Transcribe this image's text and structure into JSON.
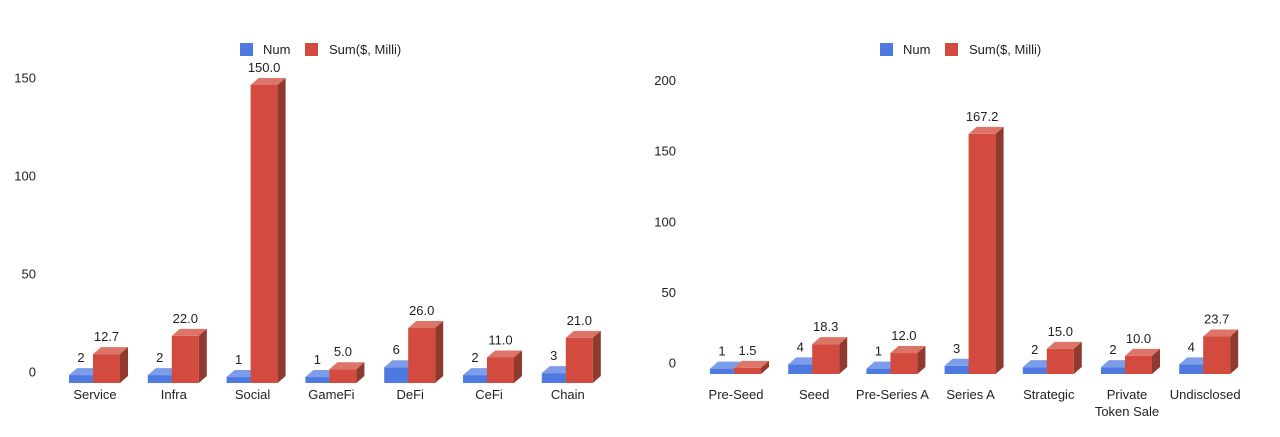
{
  "page": {
    "background_color": "#ffffff",
    "text_color": "#1f1f1f"
  },
  "colors": {
    "num_front": "#4E79E0",
    "num_top": "#7D9CEA",
    "num_side": "#3A58AC",
    "sum_front": "#D24B3E",
    "sum_top": "#DD7468",
    "sum_side": "#903A2F"
  },
  "chart_data": [
    {
      "type": "bar",
      "style": "3d-column",
      "title": "",
      "legend_position": "top",
      "grid": false,
      "categories": [
        "Service",
        "Infra",
        "Social",
        "GameFi",
        "DeFi",
        "CeFi",
        "Chain"
      ],
      "series": [
        {
          "name": "Num",
          "color": "#4E79E0",
          "values": [
            2,
            2,
            1,
            1,
            6,
            2,
            3
          ],
          "labels": [
            "2",
            "2",
            "1",
            "1",
            "6",
            "2",
            "3"
          ]
        },
        {
          "name": "Sum($, Milli)",
          "color": "#D24B3E",
          "values": [
            12.7,
            22.0,
            150.0,
            5.0,
            26.0,
            11.0,
            21.0
          ],
          "labels": [
            "12.7",
            "22.0",
            "150.0",
            "5.0",
            "26.0",
            "11.0",
            "21.0"
          ]
        }
      ],
      "y_ticks": [
        0,
        50,
        100,
        150
      ],
      "ylim": [
        0,
        150
      ]
    },
    {
      "type": "bar",
      "style": "3d-column",
      "title": "",
      "legend_position": "top",
      "grid": false,
      "categories": [
        "Pre-Seed",
        "Seed",
        "Pre-Series A",
        "Series A",
        "Strategic",
        "Private Token Sale",
        "Undisclosed"
      ],
      "series": [
        {
          "name": "Num",
          "color": "#4E79E0",
          "values": [
            1,
            4,
            1,
            3,
            2,
            2,
            4
          ],
          "labels": [
            "1",
            "4",
            "1",
            "3",
            "2",
            "2",
            "4"
          ]
        },
        {
          "name": "Sum($, Milli)",
          "color": "#D24B3E",
          "values": [
            1.5,
            18.3,
            12.0,
            167.2,
            15.0,
            10.0,
            23.7
          ],
          "labels": [
            "1.5",
            "18.3",
            "12.0",
            "167.2",
            "15.0",
            "10.0",
            "23.7"
          ]
        }
      ],
      "y_ticks": [
        0,
        50,
        100,
        150,
        200
      ],
      "ylim": [
        0,
        200
      ]
    }
  ]
}
